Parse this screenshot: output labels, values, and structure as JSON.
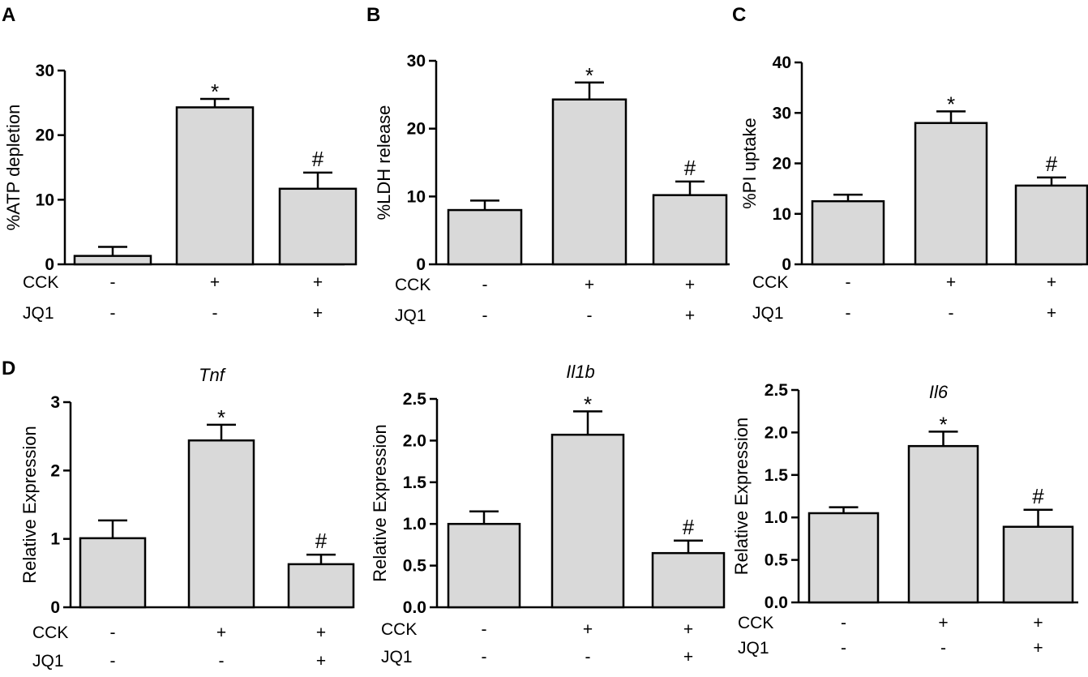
{
  "figure": {
    "background": "#ffffff",
    "bar_fill": "#d9d9d9",
    "stroke": "#000000"
  },
  "chart_data": [
    {
      "type": "bar",
      "panel_label": "A",
      "title": "",
      "xlabel": "",
      "ylabel": "%ATP depletion",
      "ylim": [
        0,
        30
      ],
      "yticks": [
        "0",
        "10",
        "20",
        "30"
      ],
      "ytick_values": [
        0,
        10,
        20,
        30
      ],
      "values": [
        1.3,
        24.3,
        11.7
      ],
      "errors": [
        1.4,
        1.3,
        2.5
      ],
      "annotations": [
        "",
        "*",
        "#"
      ],
      "condition_rows": [
        {
          "label": "CCK",
          "values": [
            "-",
            "+",
            "+"
          ]
        },
        {
          "label": "JQ1",
          "values": [
            "-",
            "-",
            "+"
          ]
        }
      ]
    },
    {
      "type": "bar",
      "panel_label": "B",
      "title": "",
      "xlabel": "",
      "ylabel": "%LDH release",
      "ylim": [
        0,
        30
      ],
      "yticks": [
        "0",
        "10",
        "20",
        "30"
      ],
      "ytick_values": [
        0,
        10,
        20,
        30
      ],
      "values": [
        8.0,
        24.3,
        10.2
      ],
      "errors": [
        1.4,
        2.5,
        2.0
      ],
      "annotations": [
        "",
        "*",
        "#"
      ],
      "condition_rows": [
        {
          "label": "CCK",
          "values": [
            "-",
            "+",
            "+"
          ]
        },
        {
          "label": "JQ1",
          "values": [
            "-",
            "-",
            "+"
          ]
        }
      ]
    },
    {
      "type": "bar",
      "panel_label": "C",
      "title": "",
      "xlabel": "",
      "ylabel": "%PI uptake",
      "ylim": [
        0,
        40
      ],
      "yticks": [
        "0",
        "10",
        "20",
        "30",
        "40"
      ],
      "ytick_values": [
        0,
        10,
        20,
        30,
        40
      ],
      "values": [
        12.5,
        28.0,
        15.6
      ],
      "errors": [
        1.3,
        2.3,
        1.6
      ],
      "annotations": [
        "",
        "*",
        "#"
      ],
      "condition_rows": [
        {
          "label": "CCK",
          "values": [
            "-",
            "+",
            "+"
          ]
        },
        {
          "label": "JQ1",
          "values": [
            "-",
            "-",
            "+"
          ]
        }
      ]
    },
    {
      "type": "bar",
      "panel_label": "D",
      "title": "Tnf",
      "xlabel": "",
      "ylabel": "Relative Expression",
      "ylim": [
        0,
        3
      ],
      "yticks": [
        "0",
        "1",
        "2",
        "3"
      ],
      "ytick_values": [
        0,
        1,
        2,
        3
      ],
      "values": [
        1.01,
        2.44,
        0.63
      ],
      "errors": [
        0.26,
        0.23,
        0.14
      ],
      "annotations": [
        "",
        "*",
        "#"
      ],
      "condition_rows": [
        {
          "label": "CCK",
          "values": [
            "-",
            "+",
            "+"
          ]
        },
        {
          "label": "JQ1",
          "values": [
            "-",
            "-",
            "+"
          ]
        }
      ]
    },
    {
      "type": "bar",
      "panel_label": "",
      "title": "Il1b",
      "xlabel": "",
      "ylabel": "Relative Expression",
      "ylim": [
        0,
        2.5
      ],
      "yticks": [
        "0.0",
        "0.5",
        "1.0",
        "1.5",
        "2.0",
        "2.5"
      ],
      "ytick_values": [
        0,
        0.5,
        1.0,
        1.5,
        2.0,
        2.5
      ],
      "values": [
        1.0,
        2.07,
        0.65
      ],
      "errors": [
        0.15,
        0.28,
        0.15
      ],
      "annotations": [
        "",
        "*",
        "#"
      ],
      "condition_rows": [
        {
          "label": "CCK",
          "values": [
            "-",
            "+",
            "+"
          ]
        },
        {
          "label": "JQ1",
          "values": [
            "-",
            "-",
            "+"
          ]
        }
      ]
    },
    {
      "type": "bar",
      "panel_label": "",
      "title": "Il6",
      "xlabel": "",
      "ylabel": "Relative Expression",
      "ylim": [
        0,
        2.5
      ],
      "yticks": [
        "0.0",
        "0.5",
        "1.0",
        "1.5",
        "2.0",
        "2.5"
      ],
      "ytick_values": [
        0,
        0.5,
        1.0,
        1.5,
        2.0,
        2.5
      ],
      "values": [
        1.05,
        1.84,
        0.89
      ],
      "errors": [
        0.07,
        0.17,
        0.2
      ],
      "annotations": [
        "",
        "*",
        "#"
      ],
      "condition_rows": [
        {
          "label": "CCK",
          "values": [
            "-",
            "+",
            "+"
          ]
        },
        {
          "label": "JQ1",
          "values": [
            "-",
            "-",
            "+"
          ]
        }
      ]
    }
  ]
}
